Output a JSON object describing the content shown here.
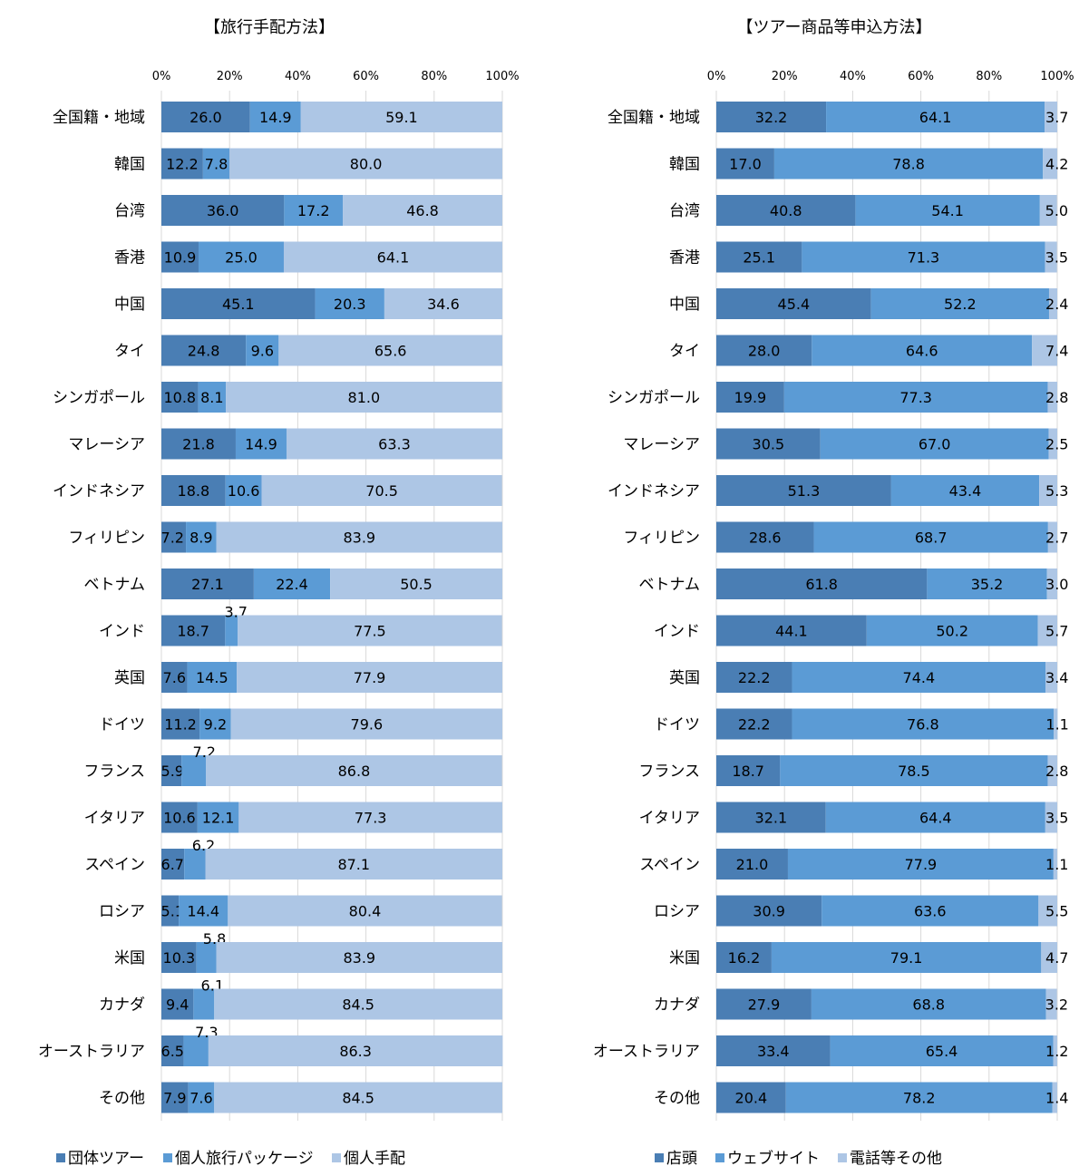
{
  "chart_data": [
    {
      "type": "bar",
      "orientation": "horizontal",
      "stacked": true,
      "title": "【旅行手配方法】",
      "xlim": [
        0,
        100
      ],
      "ticks": [
        "0%",
        "20%",
        "40%",
        "60%",
        "80%",
        "100%"
      ],
      "grid": true,
      "legend_position": "bottom",
      "categories": [
        "全国籍・地域",
        "韓国",
        "台湾",
        "香港",
        "中国",
        "タイ",
        "シンガポール",
        "マレーシア",
        "インドネシア",
        "フィリピン",
        "ベトナム",
        "インド",
        "英国",
        "ドイツ",
        "フランス",
        "イタリア",
        "スペイン",
        "ロシア",
        "米国",
        "カナダ",
        "オーストラリア",
        "その他"
      ],
      "series": [
        {
          "name": "団体ツアー",
          "color": "#4a7eb4",
          "values": [
            26.0,
            12.2,
            36.0,
            10.9,
            45.1,
            24.8,
            10.8,
            21.8,
            18.8,
            7.2,
            27.1,
            18.7,
            7.6,
            11.2,
            5.9,
            10.6,
            6.7,
            5.1,
            10.3,
            9.4,
            6.5,
            7.9
          ]
        },
        {
          "name": "個人旅行パッケージ",
          "color": "#5b9bd5",
          "values": [
            14.9,
            7.8,
            17.2,
            25.0,
            20.3,
            9.6,
            8.1,
            14.9,
            10.6,
            8.9,
            22.4,
            3.7,
            14.5,
            9.2,
            7.2,
            12.1,
            6.2,
            14.4,
            5.8,
            6.1,
            7.3,
            7.6
          ]
        },
        {
          "name": "個人手配",
          "color": "#adc6e5",
          "values": [
            59.1,
            80.0,
            46.8,
            64.1,
            34.6,
            65.6,
            81.0,
            63.3,
            70.5,
            83.9,
            50.5,
            77.5,
            77.9,
            79.6,
            86.8,
            77.3,
            87.1,
            80.4,
            83.9,
            84.5,
            86.3,
            84.5
          ]
        }
      ]
    },
    {
      "type": "bar",
      "orientation": "horizontal",
      "stacked": true,
      "title": "【ツアー商品等申込方法】",
      "xlim": [
        0,
        100
      ],
      "ticks": [
        "0%",
        "20%",
        "40%",
        "60%",
        "80%",
        "100%"
      ],
      "grid": true,
      "legend_position": "bottom",
      "categories": [
        "全国籍・地域",
        "韓国",
        "台湾",
        "香港",
        "中国",
        "タイ",
        "シンガポール",
        "マレーシア",
        "インドネシア",
        "フィリピン",
        "ベトナム",
        "インド",
        "英国",
        "ドイツ",
        "フランス",
        "イタリア",
        "スペイン",
        "ロシア",
        "米国",
        "カナダ",
        "オーストラリア",
        "その他"
      ],
      "series": [
        {
          "name": "店頭",
          "color": "#4a7eb4",
          "values": [
            32.2,
            17.0,
            40.8,
            25.1,
            45.4,
            28.0,
            19.9,
            30.5,
            51.3,
            28.6,
            61.8,
            44.1,
            22.2,
            22.2,
            18.7,
            32.1,
            21.0,
            30.9,
            16.2,
            27.9,
            33.4,
            20.4
          ]
        },
        {
          "name": "ウェブサイト",
          "color": "#5b9bd5",
          "values": [
            64.1,
            78.8,
            54.1,
            71.3,
            52.2,
            64.6,
            77.3,
            67.0,
            43.4,
            68.7,
            35.2,
            50.2,
            74.4,
            76.8,
            78.5,
            64.4,
            77.9,
            63.6,
            79.1,
            68.8,
            65.4,
            78.2
          ]
        },
        {
          "name": "電話等その他",
          "color": "#adc6e5",
          "values": [
            3.7,
            4.2,
            5.0,
            3.5,
            2.4,
            7.4,
            2.8,
            2.5,
            5.3,
            2.7,
            3.0,
            5.7,
            3.4,
            1.1,
            2.8,
            3.5,
            1.1,
            5.5,
            4.7,
            3.2,
            1.2,
            1.4
          ]
        }
      ]
    }
  ]
}
